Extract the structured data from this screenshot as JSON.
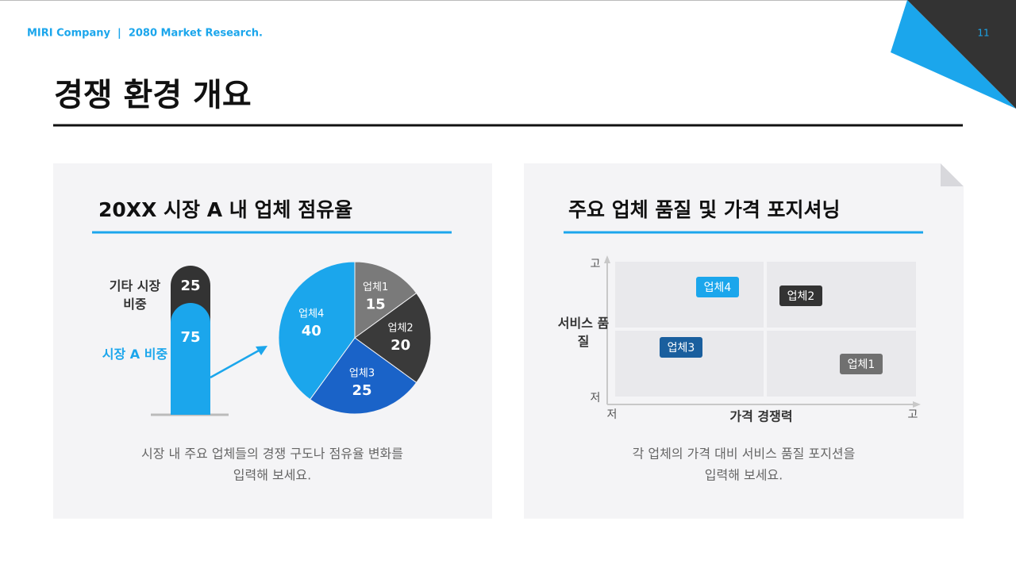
{
  "header": {
    "company": "MIRI Company  |  2080 Market Research.",
    "page_number": "11"
  },
  "title": "경쟁 환경 개요",
  "left_panel": {
    "title": "20XX 시장 A 내 업체 점유율",
    "caption": [
      "시장 내 주요 업체들의 경쟁 구도나 점유율 변화를",
      "입력해 보세요."
    ]
  },
  "chart_data": [
    {
      "type": "stacked-column",
      "ylim": [
        0,
        100
      ],
      "series": [
        {
          "name": "시장 A 비중",
          "color": "#1ba6ec",
          "values": [
            75
          ]
        },
        {
          "name": "기타 시장 비중",
          "color": "#333333",
          "values": [
            25
          ]
        }
      ]
    },
    {
      "type": "pie",
      "categories": [
        "업체1",
        "업체2",
        "업체3",
        "업체4"
      ],
      "values": [
        15,
        20,
        25,
        40
      ],
      "colors": [
        "#7a7a7a",
        "#3a3a3a",
        "#1a63c8",
        "#1ba6ec"
      ]
    }
  ],
  "right_panel": {
    "title": "주요 업체 품질 및 가격 포지셔닝",
    "caption": [
      "각 업체의 가격 대비 서비스 품질 포지션을",
      "입력해 보세요."
    ]
  },
  "positioning": {
    "y_label": "서비스 품질",
    "x_label": "가격 경쟁력",
    "low": "저",
    "high": "고",
    "items": [
      {
        "label": "업체4",
        "color": "#1ba6ec"
      },
      {
        "label": "업체2",
        "color": "#333333"
      },
      {
        "label": "업체3",
        "color": "#1a5f9e"
      },
      {
        "label": "업체1",
        "color": "#707070"
      }
    ]
  }
}
